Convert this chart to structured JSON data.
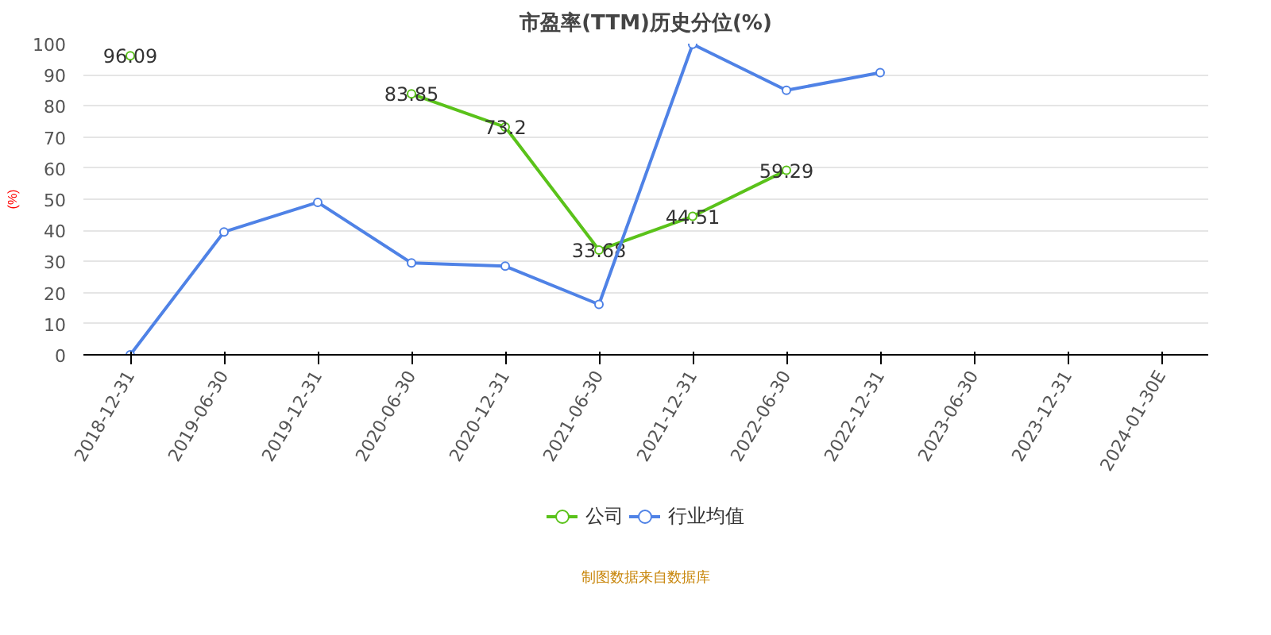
{
  "chart_data": {
    "type": "line",
    "title": "市盈率(TTM)历史分位(%)",
    "ylabel": "(%)",
    "categories": [
      "2018-12-31",
      "2019-06-30",
      "2019-12-31",
      "2020-06-30",
      "2020-12-31",
      "2021-06-30",
      "2021-12-31",
      "2022-06-30",
      "2022-12-31",
      "2023-06-30",
      "2023-12-31",
      "2024-01-30E"
    ],
    "series": [
      {
        "name": "公司",
        "color": "#5ac21a",
        "values": [
          96.09,
          null,
          null,
          83.85,
          73.2,
          33.68,
          44.51,
          59.29,
          null,
          null,
          null,
          null
        ],
        "value_labels": [
          "96.09",
          null,
          null,
          "83.85",
          "73.2",
          "33.68",
          "44.51",
          "59.29",
          null,
          null,
          null,
          null
        ]
      },
      {
        "name": "行业均值",
        "color": "#4f82e6",
        "values": [
          0,
          39.5,
          49,
          29.5,
          28.5,
          16.2,
          99.8,
          85,
          90.7,
          null,
          null,
          null
        ]
      }
    ],
    "ylim": [
      0,
      100
    ],
    "yticks": [
      0,
      10,
      20,
      30,
      40,
      50,
      60,
      70,
      80,
      90,
      100
    ],
    "grid": "y",
    "legend": "bottom",
    "marker": "circle",
    "line_style": "solid",
    "annotations": [
      "制图数据来自数据库"
    ]
  }
}
